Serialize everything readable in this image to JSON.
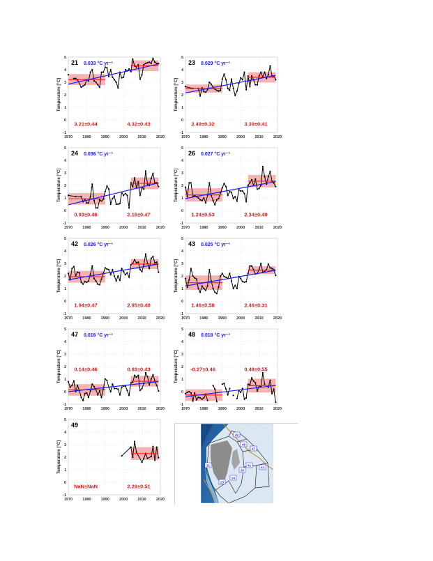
{
  "figure": {
    "ylabel": "Temperature [°C]",
    "xticks": [
      1970,
      1980,
      1990,
      2000,
      2010,
      2020
    ],
    "yticks": [
      -1,
      0,
      1,
      2,
      3,
      4,
      5
    ],
    "xlim": [
      1970,
      2020
    ],
    "ylim": [
      -1,
      5
    ],
    "colors": {
      "series": "#000000",
      "trend": "#1a1aff",
      "mean_line": "#ff1a1a",
      "band": "#f4a6a6",
      "stat_text": "#e61919",
      "rate_text": "#1a1ae6",
      "grid": "#cfcfcf"
    }
  },
  "chart_data": [
    {
      "type": "line",
      "region": "21",
      "rate_label": "0.033 °C yr⁻¹",
      "rate": 0.033,
      "trend": [
        [
          1970,
          2.85
        ],
        [
          2019,
          4.45
        ]
      ],
      "period1": {
        "range": [
          1970,
          1990
        ],
        "mean": 3.21,
        "std": 0.44,
        "label": "3.21±0.44"
      },
      "period2": {
        "range": [
          2004,
          2019
        ],
        "mean": 4.32,
        "std": 0.43,
        "label": "4.32±0.43"
      },
      "label_y": -0.35,
      "x": [
        1970,
        1972,
        1973,
        1974,
        1975,
        1977,
        1978,
        1979,
        1980,
        1981,
        1982,
        1983,
        1984,
        1985,
        1986,
        1987,
        1988,
        1989,
        1990,
        1991,
        1992,
        1993,
        1994,
        1995,
        1996,
        1997,
        1998,
        1999,
        2000,
        2001,
        2002,
        2003,
        2004,
        2005,
        2006,
        2007,
        2008,
        2009,
        2010,
        2011,
        2012,
        2013,
        2014,
        2015,
        2016,
        2017,
        2018,
        2019
      ],
      "values": [
        3.6,
        null,
        3.3,
        3.3,
        3.2,
        2.6,
        2.7,
        2.8,
        3.2,
        3.1,
        3.8,
        4.0,
        3.1,
        3.0,
        2.8,
        2.6,
        3.8,
        3.8,
        4.2,
        4.15,
        3.45,
        4.0,
        3.4,
        3.2,
        3.0,
        2.55,
        3.8,
        3.35,
        3.4,
        4.0,
        3.9,
        4.05,
        3.85,
        4.85,
        4.3,
        4.2,
        4.4,
        3.25,
        3.6,
        4.4,
        4.5,
        4.55,
        4.6,
        4.5,
        4.9,
        4.6,
        4.5,
        4.5
      ]
    },
    {
      "type": "line",
      "region": "23",
      "rate_label": "0.029 °C yr⁻¹",
      "rate": 0.029,
      "trend": [
        [
          1970,
          2.15
        ],
        [
          2019,
          3.55
        ]
      ],
      "period1": {
        "range": [
          1970,
          1990
        ],
        "mean": 2.49,
        "std": 0.32,
        "label": "2.49±0.32"
      },
      "period2": {
        "range": [
          2004,
          2019
        ],
        "mean": 3.39,
        "std": 0.41,
        "label": "3.39±0.41"
      },
      "label_y": -0.35,
      "x": [
        1970,
        1974,
        1977,
        1978,
        1979,
        1980,
        1981,
        1982,
        1983,
        1984,
        1985,
        1986,
        1987,
        1988,
        1989,
        1990,
        1991,
        1992,
        1993,
        1994,
        1995,
        1996,
        1997,
        1998,
        1999,
        2000,
        2001,
        2002,
        2003,
        2004,
        2005,
        2006,
        2007,
        2008,
        2009,
        2010,
        2011,
        2012,
        2013,
        2014,
        2015,
        2016,
        2017,
        2018,
        2019
      ],
      "values": [
        2.65,
        2.5,
        2.5,
        1.9,
        2.55,
        2.25,
        2.2,
        2.4,
        3.0,
        2.85,
        2.6,
        2.45,
        2.35,
        2.3,
        2.35,
        3.25,
        3.65,
        3.2,
        2.5,
        2.35,
        3.25,
        2.5,
        1.95,
        2.3,
        2.9,
        3.35,
        3.2,
        3.8,
        2.4,
        3.5,
        2.65,
        3.5,
        3.2,
        2.8,
        2.8,
        3.5,
        3.8,
        3.4,
        3.8,
        3.3,
        3.6,
        4.3,
        3.5,
        3.5,
        3.2
      ]
    },
    {
      "type": "line",
      "region": "24",
      "rate_label": "0.036 °C yr⁻¹",
      "rate": 0.036,
      "trend": [
        [
          1970,
          0.45
        ],
        [
          2019,
          2.2
        ]
      ],
      "period1": {
        "range": [
          1970,
          1990
        ],
        "mean": 0.93,
        "std": 0.46,
        "label": "0.93±0.46"
      },
      "period2": {
        "range": [
          2004,
          2019
        ],
        "mean": 2.16,
        "std": 0.47,
        "label": "2.16±0.47"
      },
      "label_y": -0.35,
      "x": [
        1970,
        1974,
        1977,
        1978,
        1979,
        1980,
        1981,
        1982,
        1983,
        1984,
        1985,
        1986,
        1987,
        1988,
        1989,
        1990,
        1991,
        1992,
        1993,
        1994,
        1995,
        1996,
        1997,
        1998,
        1999,
        2000,
        2001,
        2002,
        2003,
        2004,
        2005,
        2006,
        2007,
        2008,
        2009,
        2010,
        2011,
        2012,
        2013,
        2014,
        2015,
        2016,
        2017,
        2018,
        2019
      ],
      "values": [
        1.2,
        1.1,
        1.1,
        0.7,
        0.9,
        0.6,
        0.6,
        1.1,
        2.1,
        0.8,
        0.2,
        0.2,
        0.85,
        0.75,
        0.9,
        1.5,
        1.95,
        1.7,
        0.5,
        0.95,
        1.15,
        0.5,
        0.5,
        0.55,
        1.45,
        1.2,
        1.35,
        1.2,
        0.2,
        2.2,
        1.9,
        2.6,
        1.8,
        2.3,
        1.2,
        1.85,
        1.7,
        3.15,
        2.1,
        2.0,
        2.55,
        2.95,
        2.2,
        2.2,
        1.9
      ]
    },
    {
      "type": "line",
      "region": "26",
      "rate_label": "0.027 °C yr⁻¹",
      "rate": 0.027,
      "trend": [
        [
          1970,
          0.95
        ],
        [
          2019,
          2.3
        ]
      ],
      "period1": {
        "range": [
          1970,
          1990
        ],
        "mean": 1.24,
        "std": 0.53,
        "label": "1.24±0.53"
      },
      "period2": {
        "range": [
          2004,
          2019
        ],
        "mean": 2.34,
        "std": 0.49,
        "label": "2.34±0.49"
      },
      "label_y": -0.35,
      "x": [
        1970,
        1971,
        1972,
        1973,
        1974,
        1975,
        1976,
        1977,
        1978,
        1979,
        1980,
        1981,
        1982,
        1983,
        1984,
        1985,
        1986,
        1987,
        1988,
        1989,
        1990,
        1991,
        1992,
        1993,
        1994,
        1995,
        1996,
        1997,
        1998,
        1999,
        2000,
        2001,
        2002,
        2003,
        2004,
        2005,
        2006,
        2007,
        2008,
        2009,
        2010,
        2011,
        2012,
        2013,
        2014,
        2015,
        2016,
        2017,
        2018,
        2019
      ],
      "values": [
        1.85,
        1.1,
        2.2,
        2.2,
        1.1,
        1.2,
        1.1,
        1.0,
        0.85,
        0.8,
        1.0,
        0.6,
        1.2,
        2.2,
        1.2,
        0.8,
        0.45,
        0.85,
        0.95,
        1.4,
        1.8,
        2.15,
        1.9,
        1.2,
        1.5,
        1.45,
        0.95,
        1.1,
        0.75,
        1.65,
        1.55,
        1.55,
        1.35,
        0.7,
        2.0,
        2.2,
        2.45,
        2.0,
        2.5,
        1.7,
        1.75,
        2.0,
        3.5,
        2.7,
        2.1,
        2.7,
        3.1,
        2.35,
        2.2,
        1.9
      ]
    },
    {
      "type": "line",
      "region": "42",
      "rate_label": "0.026 °C yr⁻¹",
      "rate": 0.026,
      "trend": [
        [
          1970,
          1.7
        ],
        [
          2019,
          2.95
        ]
      ],
      "period1": {
        "range": [
          1970,
          1990
        ],
        "mean": 1.94,
        "std": 0.47,
        "label": "1.94±0.47"
      },
      "period2": {
        "range": [
          2004,
          2019
        ],
        "mean": 2.95,
        "std": 0.4,
        "label": "2.95±0.40"
      },
      "label_y": -0.35,
      "x": [
        1970,
        1971,
        1972,
        1973,
        1974,
        1975,
        1976,
        1977,
        1978,
        1979,
        1980,
        1981,
        1982,
        1983,
        1984,
        1985,
        1986,
        1987,
        1988,
        1989,
        1990,
        1991,
        1992,
        1993,
        1994,
        1995,
        1996,
        1997,
        1998,
        1999,
        2000,
        2001,
        2002,
        2003,
        2004,
        2005,
        2006,
        2007,
        2008,
        2009,
        2010,
        2011,
        2012,
        2013,
        2014,
        2015,
        2016,
        2017,
        2018,
        2019
      ],
      "values": [
        2.2,
        1.7,
        2.6,
        2.75,
        2.0,
        2.3,
        2.25,
        1.5,
        1.35,
        1.55,
        1.5,
        1.6,
        2.15,
        2.8,
        1.8,
        1.6,
        1.35,
        1.3,
        1.75,
        2.2,
        2.65,
        2.55,
        2.5,
        2.1,
        2.5,
        2.0,
        1.6,
        2.0,
        1.65,
        2.6,
        2.35,
        2.1,
        2.25,
        1.9,
        2.9,
        3.0,
        3.3,
        3.05,
        3.1,
        2.5,
        2.35,
        2.9,
        3.75,
        3.0,
        2.6,
        3.4,
        3.55,
        3.05,
        3.1,
        2.3
      ]
    },
    {
      "type": "line",
      "region": "43",
      "rate_label": "0.025 °C yr⁻¹",
      "rate": 0.025,
      "trend": [
        [
          1970,
          1.2
        ],
        [
          2019,
          2.45
        ]
      ],
      "period1": {
        "range": [
          1970,
          1990
        ],
        "mean": 1.46,
        "std": 0.58,
        "label": "1.46±0.58"
      },
      "period2": {
        "range": [
          2004,
          2019
        ],
        "mean": 2.46,
        "std": 0.31,
        "label": "2.46±0.31"
      },
      "label_y": -0.35,
      "x": [
        1970,
        1971,
        1972,
        1973,
        1974,
        1975,
        1976,
        1977,
        1978,
        1979,
        1980,
        1981,
        1982,
        1983,
        1984,
        1985,
        1986,
        1987,
        1988,
        1989,
        1990,
        1991,
        1992,
        1993,
        1994,
        1995,
        1996,
        1997,
        1998,
        1999,
        2000,
        2001,
        2002,
        2003,
        2004,
        2005,
        2006,
        2007,
        2008,
        2009,
        2010,
        2011,
        2012,
        2013,
        2014,
        2015,
        2016,
        2017,
        2018,
        2019
      ],
      "values": [
        1.8,
        1.1,
        1.7,
        2.6,
        2.0,
        1.85,
        1.75,
        1.0,
        0.7,
        1.2,
        1.0,
        0.85,
        1.2,
        2.5,
        1.6,
        1.0,
        0.7,
        0.6,
        1.1,
        2.0,
        2.2,
        1.95,
        1.9,
        1.8,
        2.2,
        1.6,
        1.0,
        1.25,
        1.0,
        1.95,
        1.8,
        1.55,
        1.5,
        1.55,
        2.2,
        2.8,
        2.8,
        2.5,
        2.15,
        2.2,
        2.5,
        3.0,
        2.3,
        2.35,
        2.5,
        2.95,
        2.65,
        2.6,
        2.5,
        2.05
      ]
    },
    {
      "type": "line",
      "region": "47",
      "rate_label": "0.016 °C yr⁻¹",
      "rate": 0.016,
      "trend": [
        [
          1970,
          0.0
        ],
        [
          2019,
          0.8
        ]
      ],
      "period1": {
        "range": [
          1970,
          1990
        ],
        "mean": 0.14,
        "std": 0.46,
        "label": "0.14±0.46"
      },
      "period2": {
        "range": [
          2004,
          2019
        ],
        "mean": 0.83,
        "std": 0.43,
        "label": "0.83±0.43"
      },
      "label_y": 1.75,
      "x": [
        1970,
        1971,
        1972,
        1973,
        1974,
        1975,
        1976,
        1977,
        1978,
        1979,
        1980,
        1981,
        1982,
        1983,
        1984,
        1985,
        1986,
        1987,
        1988,
        1989,
        1990,
        1991,
        1992,
        1993,
        1994,
        1995,
        1996,
        1997,
        1998,
        1999,
        2000,
        2001,
        2002,
        2003,
        2004,
        2005,
        2006,
        2007,
        2008,
        2009,
        2010,
        2011,
        2012,
        2013,
        2014,
        2015,
        2016,
        2017,
        2018,
        2019
      ],
      "values": [
        0.8,
        0.35,
        0.5,
        0.85,
        0.0,
        0.5,
        0.1,
        -0.45,
        -0.7,
        -0.15,
        -0.1,
        -0.45,
        0.05,
        0.6,
        0.4,
        0.15,
        -0.25,
        0.05,
        -0.45,
        0.2,
        1.0,
        0.9,
        0.35,
        0.0,
        0.6,
        0.25,
        0.25,
        0.2,
        -0.25,
        0.35,
        0.45,
        0.45,
        0.1,
        -0.3,
        0.7,
        0.75,
        1.3,
        1.15,
        1.3,
        0.1,
        0.25,
        0.65,
        1.5,
        1.2,
        0.55,
        1.0,
        1.35,
        0.85,
        0.5,
        0.05
      ]
    },
    {
      "type": "line",
      "region": "48",
      "rate_label": "0.018 °C yr⁻¹",
      "rate": 0.018,
      "trend": [
        [
          1970,
          -0.4
        ],
        [
          2019,
          0.5
        ]
      ],
      "period1": {
        "range": [
          1970,
          1990
        ],
        "mean": -0.27,
        "std": 0.46,
        "label": "-0.27±0.46"
      },
      "period2": {
        "range": [
          2004,
          2019
        ],
        "mean": 0.48,
        "std": 0.55,
        "label": "0.48±0.55"
      },
      "label_y": 1.75,
      "x": [
        1970,
        1971,
        1972,
        1973,
        1974,
        1975,
        1976,
        1977,
        1978,
        1979,
        1980,
        1981,
        1982,
        1983,
        1984,
        1985,
        1986,
        1987,
        1988,
        1989,
        1990,
        1991,
        1992,
        1993,
        1994,
        1995,
        1996,
        1997,
        1998,
        1999,
        2000,
        2001,
        2002,
        2003,
        2004,
        2005,
        2006,
        2007,
        2008,
        2009,
        2010,
        2011,
        2012,
        2013,
        2014,
        2015,
        2016,
        2017,
        2018,
        2019
      ],
      "values": [
        -0.15,
        -0.05,
        0.0,
        -0.1,
        -0.75,
        -0.1,
        -0.65,
        -0.45,
        -0.5,
        -0.6,
        -0.5,
        -0.2,
        -0.7,
        null,
        null,
        0.5,
        0.2,
        -0.8,
        null,
        null,
        0.6,
        0.65,
        0.2,
        -0.25,
        0.25,
        null,
        -0.3,
        null,
        -0.55,
        0.1,
        -0.05,
        0.25,
        -0.6,
        -0.5,
        0.6,
        0.55,
        1.1,
        0.85,
        0.7,
        0.05,
        0.45,
        0.4,
        1.5,
        0.6,
        null,
        0.35,
        0.9,
        -0.15,
        0.2,
        -0.85
      ]
    },
    {
      "type": "line",
      "region": "49",
      "rate_label": "",
      "trend": null,
      "period1": {
        "range": null,
        "mean": null,
        "std": null,
        "label": "NaN±NaN"
      },
      "period2": {
        "range": [
          2004,
          2019
        ],
        "mean": 2.29,
        "std": 0.51,
        "label": "2.29±0.51"
      },
      "label_y": -0.35,
      "x": [
        1999,
        2004,
        2005,
        2006,
        2007,
        2010,
        2011,
        2012,
        2013,
        2015,
        2016,
        2017,
        2018,
        2019
      ],
      "values": [
        2.1,
        2.8,
        2.0,
        3.25,
        2.4,
        1.6,
        1.9,
        2.3,
        1.9,
        2.05,
        2.85,
        1.75,
        2.8,
        1.95
      ]
    }
  ],
  "map": {
    "region_labels": [
      "49",
      "48",
      "47",
      "21",
      "42",
      "43",
      "26",
      "24",
      "23"
    ]
  }
}
